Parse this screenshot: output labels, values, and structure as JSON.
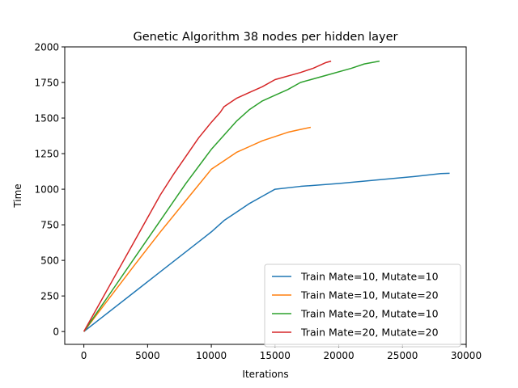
{
  "chart_data": {
    "type": "line",
    "title": "Genetic Algorithm 38 nodes per hidden layer",
    "xlabel": "Iterations",
    "ylabel": "Time",
    "xlim": [
      -1500,
      30000
    ],
    "ylim": [
      -90,
      2000
    ],
    "xticks": [
      0,
      5000,
      10000,
      15000,
      20000,
      25000,
      30000
    ],
    "xtick_labels": [
      "0",
      "5000",
      "10000",
      "15000",
      "20000",
      "25000",
      "30000"
    ],
    "yticks": [
      0,
      250,
      500,
      750,
      1000,
      1250,
      1500,
      1750,
      2000
    ],
    "ytick_labels": [
      "0",
      "250",
      "500",
      "750",
      "1000",
      "1250",
      "1500",
      "1750",
      "2000"
    ],
    "grid": false,
    "legend_position": "lower-right",
    "series": [
      {
        "name": "Train Mate=10, Mutate=10",
        "color": "#1f77b4",
        "points": [
          [
            0,
            0
          ],
          [
            2000,
            140
          ],
          [
            4000,
            280
          ],
          [
            6000,
            420
          ],
          [
            8000,
            560
          ],
          [
            10000,
            700
          ],
          [
            11000,
            780
          ],
          [
            12000,
            840
          ],
          [
            13000,
            900
          ],
          [
            14000,
            950
          ],
          [
            15000,
            1000
          ],
          [
            17000,
            1020
          ],
          [
            20000,
            1040
          ],
          [
            23000,
            1065
          ],
          [
            26000,
            1090
          ],
          [
            28000,
            1110
          ],
          [
            28700,
            1112
          ]
        ]
      },
      {
        "name": "Train Mate=10, Mutate=20",
        "color": "#ff7f0e",
        "points": [
          [
            0,
            0
          ],
          [
            2000,
            235
          ],
          [
            4000,
            470
          ],
          [
            6000,
            700
          ],
          [
            8000,
            920
          ],
          [
            10000,
            1140
          ],
          [
            11000,
            1200
          ],
          [
            12000,
            1260
          ],
          [
            13000,
            1300
          ],
          [
            14000,
            1340
          ],
          [
            15000,
            1370
          ],
          [
            16000,
            1400
          ],
          [
            17000,
            1420
          ],
          [
            17800,
            1435
          ]
        ]
      },
      {
        "name": "Train Mate=20, Mutate=10",
        "color": "#2ca02c",
        "points": [
          [
            0,
            0
          ],
          [
            2000,
            260
          ],
          [
            4000,
            520
          ],
          [
            6000,
            780
          ],
          [
            8000,
            1040
          ],
          [
            10000,
            1280
          ],
          [
            11000,
            1380
          ],
          [
            12000,
            1480
          ],
          [
            13000,
            1560
          ],
          [
            14000,
            1620
          ],
          [
            15000,
            1660
          ],
          [
            16000,
            1700
          ],
          [
            17000,
            1750
          ],
          [
            19000,
            1800
          ],
          [
            21000,
            1850
          ],
          [
            22000,
            1880
          ],
          [
            23200,
            1900
          ]
        ]
      },
      {
        "name": "Train Mate=20, Mutate=20",
        "color": "#d62728",
        "points": [
          [
            0,
            0
          ],
          [
            2000,
            320
          ],
          [
            4000,
            640
          ],
          [
            6000,
            960
          ],
          [
            7000,
            1100
          ],
          [
            8000,
            1230
          ],
          [
            9000,
            1360
          ],
          [
            10000,
            1470
          ],
          [
            10700,
            1540
          ],
          [
            11000,
            1580
          ],
          [
            12000,
            1640
          ],
          [
            13000,
            1680
          ],
          [
            14000,
            1720
          ],
          [
            15000,
            1770
          ],
          [
            17000,
            1820
          ],
          [
            18000,
            1850
          ],
          [
            19000,
            1890
          ],
          [
            19400,
            1900
          ]
        ]
      }
    ]
  }
}
